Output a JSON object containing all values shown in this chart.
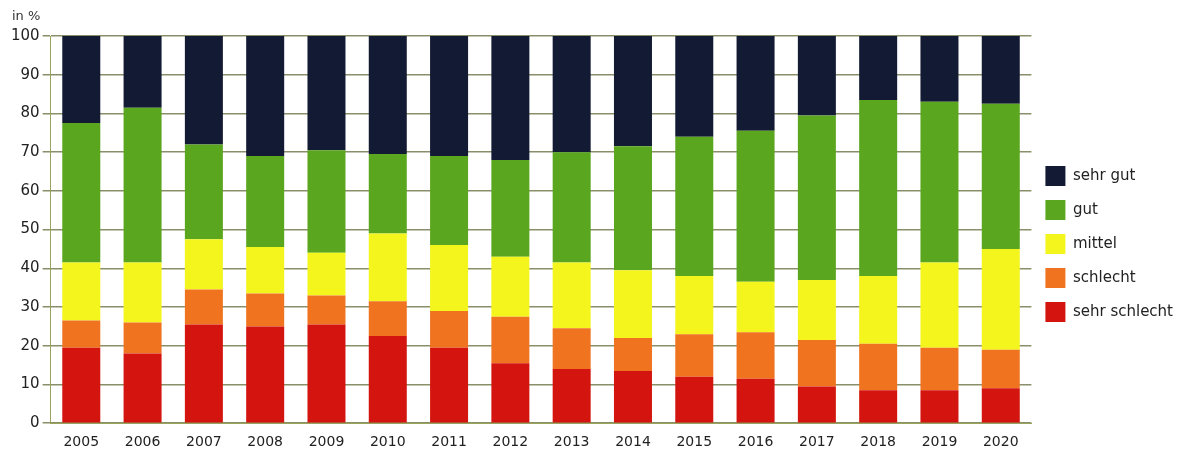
{
  "chart_data": {
    "type": "bar",
    "stacked": true,
    "ylabel": "in %",
    "categories": [
      "2005",
      "2006",
      "2007",
      "2008",
      "2009",
      "2010",
      "2011",
      "2012",
      "2013",
      "2014",
      "2015",
      "2016",
      "2017",
      "2018",
      "2019",
      "2020"
    ],
    "series": [
      {
        "name": "sehr schlecht",
        "color": "#d4150f",
        "values": [
          19.5,
          18,
          25.5,
          25,
          25.5,
          22.5,
          19.5,
          15.5,
          14,
          13.5,
          12,
          11.5,
          9.5,
          8.5,
          8.5,
          9
        ]
      },
      {
        "name": "schlecht",
        "color": "#f07320",
        "values": [
          7,
          8,
          9,
          8.5,
          7.5,
          9,
          9.5,
          12,
          10.5,
          8.5,
          11,
          12,
          12,
          12,
          11,
          10
        ]
      },
      {
        "name": "mittel",
        "color": "#f5f51e",
        "values": [
          15,
          15.5,
          13,
          12,
          11,
          17.5,
          17,
          15.5,
          17,
          17.5,
          15,
          13,
          15.5,
          17.5,
          22,
          26
        ]
      },
      {
        "name": "gut",
        "color": "#5aa61e",
        "values": [
          36,
          40,
          24.5,
          23.5,
          26.5,
          20.5,
          23,
          25,
          28.5,
          32,
          36,
          39,
          42.5,
          45.5,
          41.5,
          37.5
        ]
      },
      {
        "name": "sehr gut",
        "color": "#131a33",
        "values": [
          22.5,
          18.5,
          28,
          31,
          29.5,
          30.5,
          31,
          32,
          30,
          28.5,
          26,
          24.5,
          20.5,
          16.5,
          17,
          17.5
        ]
      }
    ],
    "ylim": [
      0,
      100
    ],
    "yticks": [
      0,
      10,
      20,
      30,
      40,
      50,
      60,
      70,
      80,
      90,
      100
    ],
    "grid": "y",
    "legend": "right"
  }
}
